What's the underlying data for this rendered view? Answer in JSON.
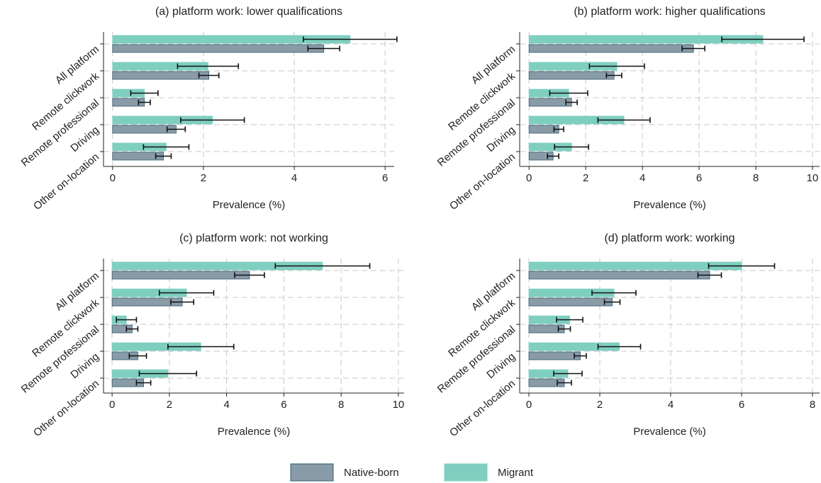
{
  "chart_data": [
    {
      "type": "hbar_error",
      "title": "(a) platform work: lower qualifications",
      "xlabel": "Prevalence (%)",
      "categories": [
        "All platform",
        "Remote clickwork",
        "Remote professional",
        "Driving",
        "Other on-location"
      ],
      "series": [
        {
          "name": "Native-born",
          "color": "#8a9ba8",
          "values": [
            4.65,
            2.12,
            0.7,
            1.4,
            1.12
          ],
          "errors": [
            0.35,
            0.22,
            0.13,
            0.2,
            0.17
          ]
        },
        {
          "name": "Migrant",
          "color": "#7ecfc0",
          "values": [
            5.23,
            2.1,
            0.7,
            2.2,
            1.18
          ],
          "errors": [
            1.03,
            0.67,
            0.3,
            0.7,
            0.5
          ]
        }
      ],
      "xlim": [
        -0.2,
        6.2
      ],
      "xticks": [
        0,
        2,
        4,
        6
      ],
      "grid": true
    },
    {
      "type": "hbar_error",
      "title": "(b) platform work: higher qualifications",
      "xlabel": "Prevalence (%)",
      "categories": [
        "All platform",
        "Remote clickwork",
        "Remote professional",
        "Driving",
        "Other on-location"
      ],
      "series": [
        {
          "name": "Native-born",
          "color": "#8a9ba8",
          "values": [
            5.8,
            3.0,
            1.5,
            1.05,
            0.85
          ],
          "errors": [
            0.4,
            0.27,
            0.2,
            0.17,
            0.2
          ]
        },
        {
          "name": "Migrant",
          "color": "#7ecfc0",
          "values": [
            8.25,
            3.1,
            1.4,
            3.35,
            1.5
          ],
          "errors": [
            1.45,
            0.97,
            0.67,
            0.92,
            0.6
          ]
        }
      ],
      "xlim": [
        -0.33,
        10.25
      ],
      "xticks": [
        0,
        2,
        4,
        6,
        8,
        10
      ],
      "grid": true
    },
    {
      "type": "hbar_error",
      "title": "(c) platform work: not working",
      "xlabel": "Prevalence (%)",
      "categories": [
        "All platform",
        "Remote clickwork",
        "Remote professional",
        "Driving",
        "Other on-location"
      ],
      "series": [
        {
          "name": "Native-born",
          "color": "#8a9ba8",
          "values": [
            4.8,
            2.45,
            0.7,
            0.9,
            1.1
          ],
          "errors": [
            0.52,
            0.4,
            0.2,
            0.3,
            0.25
          ]
        },
        {
          "name": "Migrant",
          "color": "#7ecfc0",
          "values": [
            7.35,
            2.6,
            0.5,
            3.1,
            1.95
          ],
          "errors": [
            1.65,
            0.95,
            0.35,
            1.15,
            1.0
          ]
        }
      ],
      "xlim": [
        -0.3,
        10.2
      ],
      "xticks": [
        0,
        2,
        4,
        6,
        8,
        10
      ],
      "grid": true
    },
    {
      "type": "hbar_error",
      "title": "(d) platform work: working",
      "xlabel": "Prevalence (%)",
      "categories": [
        "All platform",
        "Remote clickwork",
        "Remote professional",
        "Driving",
        "Other on-location"
      ],
      "series": [
        {
          "name": "Native-born",
          "color": "#8a9ba8",
          "values": [
            5.1,
            2.35,
            1.0,
            1.45,
            1.0
          ],
          "errors": [
            0.33,
            0.22,
            0.17,
            0.17,
            0.2
          ]
        },
        {
          "name": "Migrant",
          "color": "#7ecfc0",
          "values": [
            6.0,
            2.4,
            1.15,
            2.55,
            1.1
          ],
          "errors": [
            0.93,
            0.62,
            0.37,
            0.6,
            0.4
          ]
        }
      ],
      "xlim": [
        -0.26,
        8.2
      ],
      "xticks": [
        0,
        2,
        4,
        6,
        8
      ],
      "grid": true
    }
  ]
}
